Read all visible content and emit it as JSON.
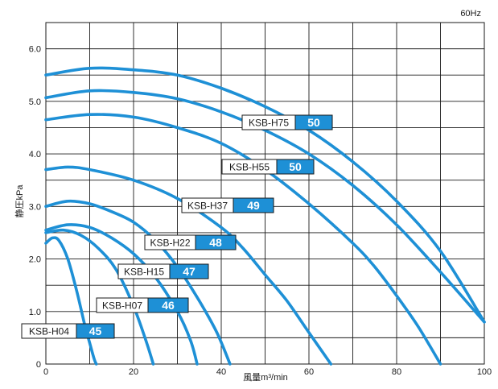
{
  "chart_data": {
    "type": "line",
    "corner_note": "60Hz",
    "xlabel": "風量m³/min",
    "ylabel": "静圧kPa",
    "xlim": [
      0,
      100
    ],
    "ylim": [
      0,
      6.5
    ],
    "x_ticks": [
      0,
      20,
      40,
      60,
      80,
      100
    ],
    "y_ticks": [
      0,
      1.0,
      2.0,
      3.0,
      4.0,
      5.0,
      6.0
    ],
    "x_tick_labels": [
      "0",
      "20",
      "40",
      "60",
      "80",
      "100"
    ],
    "y_tick_labels": [
      "0",
      "1.0",
      "2.0",
      "3.0",
      "4.0",
      "5.0",
      "6.0"
    ],
    "grid": true,
    "series_color": "#1e90d6",
    "series": [
      {
        "name": "KSB-H04",
        "efficiency": "45",
        "x": [
          0,
          1.5,
          3,
          5,
          7,
          9,
          10,
          11,
          11.5
        ],
        "y": [
          2.3,
          2.4,
          2.35,
          2.0,
          1.4,
          0.7,
          0.4,
          0.1,
          0
        ]
      },
      {
        "name": "KSB-H07",
        "efficiency": "46",
        "x": [
          0,
          4,
          8,
          12,
          16,
          20,
          23,
          24.5
        ],
        "y": [
          2.5,
          2.55,
          2.45,
          2.2,
          1.8,
          1.1,
          0.4,
          0
        ]
      },
      {
        "name": "KSB-H15",
        "efficiency": "47",
        "x": [
          0,
          5,
          10,
          15,
          20,
          25,
          30,
          33,
          34.5
        ],
        "y": [
          2.55,
          2.65,
          2.6,
          2.4,
          2.1,
          1.65,
          1.0,
          0.45,
          0
        ]
      },
      {
        "name": "KSB-H22",
        "efficiency": "48",
        "x": [
          0,
          5,
          10,
          15,
          20,
          25,
          30,
          35,
          39,
          42
        ],
        "y": [
          3.0,
          3.1,
          3.05,
          2.9,
          2.7,
          2.35,
          1.85,
          1.2,
          0.6,
          0
        ]
      },
      {
        "name": "KSB-H37",
        "efficiency": "49",
        "x": [
          0,
          5,
          10,
          20,
          30,
          40,
          45,
          50,
          55,
          60,
          65
        ],
        "y": [
          3.7,
          3.75,
          3.7,
          3.5,
          3.15,
          2.6,
          2.2,
          1.7,
          1.2,
          0.6,
          0
        ]
      },
      {
        "name": "KSB-H55",
        "efficiency": "50",
        "x": [
          0,
          10,
          20,
          30,
          40,
          50,
          60,
          70,
          75,
          80,
          85,
          90
        ],
        "y": [
          4.65,
          4.75,
          4.7,
          4.5,
          4.2,
          3.7,
          3.05,
          2.3,
          1.85,
          1.3,
          0.7,
          0
        ]
      },
      {
        "name": "KSB-H75",
        "efficiency": "50",
        "x": [
          0,
          10,
          20,
          30,
          40,
          50,
          60,
          70,
          80,
          90,
          100
        ],
        "y": [
          5.07,
          5.2,
          5.17,
          5.05,
          4.8,
          4.45,
          4.0,
          3.4,
          2.65,
          1.75,
          0.8
        ]
      },
      {
        "name": "",
        "efficiency": "",
        "x": [
          0,
          10,
          20,
          30,
          40,
          50,
          60,
          70,
          80,
          90,
          100
        ],
        "y": [
          5.5,
          5.63,
          5.6,
          5.5,
          5.25,
          4.9,
          4.45,
          3.85,
          3.1,
          2.15,
          0.8
        ]
      }
    ],
    "curve_labels": [
      {
        "model": "KSB-H75",
        "efficiency": "50"
      },
      {
        "model": "KSB-H55",
        "efficiency": "50"
      },
      {
        "model": "KSB-H37",
        "efficiency": "49"
      },
      {
        "model": "KSB-H22",
        "efficiency": "48"
      },
      {
        "model": "KSB-H15",
        "efficiency": "47"
      },
      {
        "model": "KSB-H07",
        "efficiency": "46"
      },
      {
        "model": "KSB-H04",
        "efficiency": "45"
      }
    ]
  }
}
